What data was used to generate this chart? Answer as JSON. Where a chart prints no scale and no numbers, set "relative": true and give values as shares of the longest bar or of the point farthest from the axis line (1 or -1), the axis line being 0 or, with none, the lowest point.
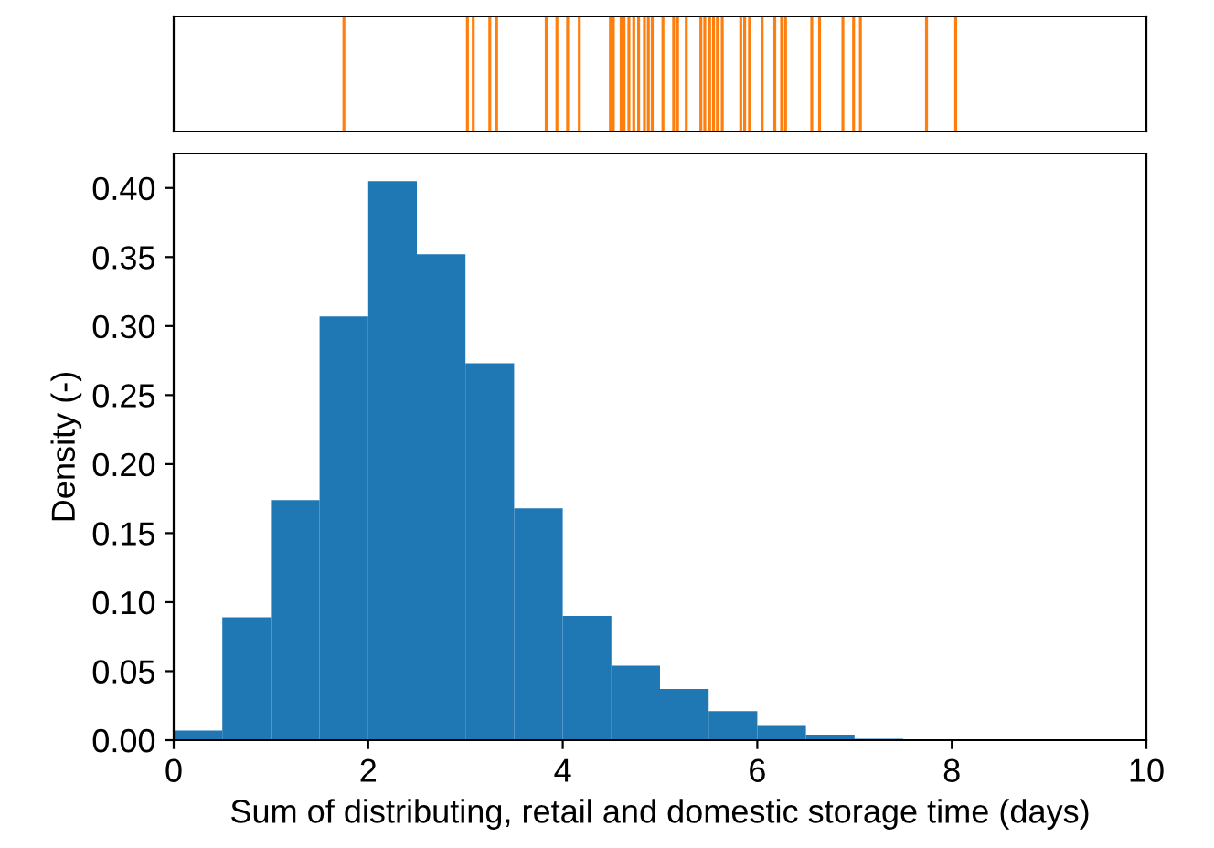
{
  "chart_data": [
    {
      "type": "bar",
      "relative": true,
      "xlim": [
        0,
        10
      ],
      "tick_labels": false,
      "grid": false,
      "color": "#ff7f0e",
      "x": [
        1.75,
        3.02,
        3.08,
        3.25,
        3.32,
        3.83,
        3.94,
        4.05,
        4.17,
        4.49,
        4.52,
        4.6,
        4.63,
        4.68,
        4.73,
        4.78,
        4.84,
        4.88,
        4.92,
        5.03,
        5.14,
        5.18,
        5.27,
        5.42,
        5.46,
        5.51,
        5.55,
        5.59,
        5.64,
        5.83,
        5.87,
        5.92,
        6.05,
        6.18,
        6.25,
        6.29,
        6.56,
        6.64,
        6.88,
        6.99,
        7.06,
        7.74,
        8.04
      ],
      "values": [
        1,
        1,
        1,
        1,
        1,
        1,
        1,
        1,
        1,
        1,
        1,
        1,
        1,
        1,
        1,
        1,
        1,
        1,
        1,
        1,
        1,
        1,
        1,
        1,
        1,
        1,
        1,
        1,
        1,
        1,
        1,
        1,
        1,
        1,
        1,
        1,
        1,
        1,
        1,
        1,
        1,
        1,
        1
      ]
    },
    {
      "type": "histogram",
      "xlabel": "Sum of distributing, retail and domestic storage time (days)",
      "ylabel": "Density (-)",
      "color": "#1f77b4",
      "grid": false,
      "bins": [
        0,
        0.5,
        1,
        1.5,
        2,
        2.5,
        3,
        3.5,
        4,
        4.5,
        5,
        5.5,
        6,
        6.5,
        7,
        7.5
      ],
      "values": [
        0.007,
        0.089,
        0.174,
        0.307,
        0.405,
        0.352,
        0.273,
        0.168,
        0.09,
        0.054,
        0.037,
        0.021,
        0.011,
        0.004,
        0.001
      ],
      "xlim": [
        0,
        10
      ],
      "xticks": [
        0,
        2,
        4,
        6,
        8,
        10
      ],
      "ylim": [
        0,
        0.425
      ],
      "yticks": [
        {
          "value": 0,
          "label": "0.00"
        },
        {
          "value": 0.05,
          "label": "0.05"
        },
        {
          "value": 0.1,
          "label": "0.10"
        },
        {
          "value": 0.15,
          "label": "0.15"
        },
        {
          "value": 0.2,
          "label": "0.20"
        },
        {
          "value": 0.25,
          "label": "0.25"
        },
        {
          "value": 0.3,
          "label": "0.30"
        },
        {
          "value": 0.35,
          "label": "0.35"
        },
        {
          "value": 0.4,
          "label": "0.40"
        }
      ]
    }
  ]
}
